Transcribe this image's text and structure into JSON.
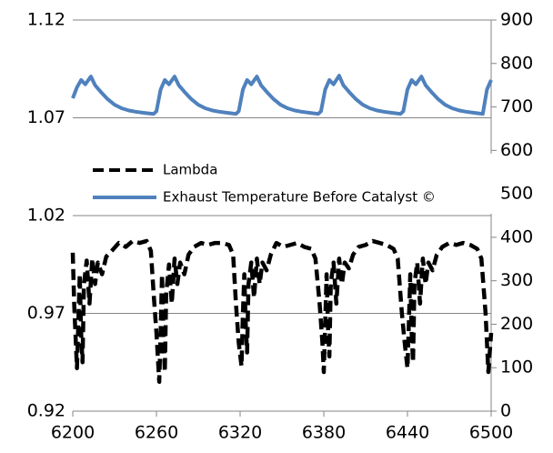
{
  "chart_data": {
    "type": "line",
    "series": [
      {
        "name": "Lambda",
        "color": "#000000",
        "dashed": true,
        "x": [
          6200,
          6201,
          6203,
          6204,
          6205,
          6206,
          6207,
          6208,
          6210,
          6212,
          6214,
          6216,
          6218,
          6221,
          6224,
          6228,
          6233,
          6238,
          6243,
          6248,
          6253,
          6256,
          6258,
          6260,
          6262,
          6263,
          6264,
          6265,
          6266,
          6267,
          6269,
          6271,
          6273,
          6275,
          6277,
          6280,
          6283,
          6287,
          6292,
          6297,
          6302,
          6307,
          6312,
          6315,
          6317,
          6319,
          6321,
          6322,
          6323,
          6324,
          6325,
          6326,
          6328,
          6330,
          6332,
          6334,
          6336,
          6339,
          6342,
          6346,
          6351,
          6356,
          6361,
          6366,
          6371,
          6374,
          6377,
          6379,
          6380,
          6381,
          6382,
          6383,
          6384,
          6385,
          6387,
          6389,
          6391,
          6393,
          6395,
          6398,
          6401,
          6405,
          6410,
          6415,
          6420,
          6425,
          6430,
          6433,
          6436,
          6438,
          6440,
          6441,
          6442,
          6443,
          6444,
          6445,
          6447,
          6449,
          6451,
          6453,
          6455,
          6458,
          6461,
          6465,
          6470,
          6475,
          6480,
          6485,
          6490,
          6493,
          6496,
          6498,
          6500
        ],
        "values": [
          1.001,
          0.975,
          0.942,
          0.965,
          0.99,
          0.96,
          0.945,
          0.985,
          0.997,
          0.975,
          0.998,
          0.985,
          0.996,
          0.99,
          0.999,
          1.002,
          1.006,
          1.004,
          1.007,
          1.006,
          1.007,
          1.002,
          0.98,
          0.96,
          0.935,
          0.96,
          0.99,
          0.96,
          0.94,
          0.98,
          0.995,
          0.975,
          0.998,
          0.985,
          0.996,
          0.99,
          1.0,
          1.004,
          1.006,
          1.005,
          1.006,
          1.006,
          1.005,
          1.0,
          0.975,
          0.955,
          0.943,
          0.97,
          0.99,
          0.965,
          0.95,
          0.985,
          0.996,
          0.978,
          0.998,
          0.985,
          0.996,
          0.992,
          1.0,
          1.006,
          1.004,
          1.005,
          1.006,
          1.004,
          1.003,
          0.998,
          0.975,
          0.955,
          0.94,
          0.965,
          0.99,
          0.963,
          0.948,
          0.985,
          0.996,
          0.975,
          0.998,
          0.985,
          0.996,
          0.993,
          1.0,
          1.004,
          1.005,
          1.007,
          1.006,
          1.005,
          1.003,
          0.998,
          0.97,
          0.955,
          0.942,
          0.965,
          0.99,
          0.96,
          0.945,
          0.985,
          0.996,
          0.975,
          0.998,
          0.985,
          0.996,
          0.992,
          1.0,
          1.004,
          1.006,
          1.005,
          1.006,
          1.005,
          1.003,
          0.998,
          0.97,
          0.94,
          0.96
        ]
      },
      {
        "name": "Exhaust Temperature Before Catalyst ©",
        "color": "#4f81bd",
        "axis": "y2",
        "x": [
          6200,
          6203,
          6206,
          6209,
          6213,
          6216,
          6220,
          6225,
          6230,
          6235,
          6240,
          6245,
          6252,
          6258,
          6260,
          6263,
          6266,
          6269,
          6273,
          6276,
          6280,
          6285,
          6290,
          6295,
          6300,
          6305,
          6312,
          6317,
          6319,
          6322,
          6325,
          6328,
          6332,
          6335,
          6339,
          6344,
          6349,
          6354,
          6359,
          6364,
          6371,
          6376,
          6378,
          6381,
          6384,
          6387,
          6391,
          6394,
          6398,
          6403,
          6408,
          6413,
          6418,
          6423,
          6430,
          6435,
          6437,
          6440,
          6443,
          6446,
          6450,
          6453,
          6457,
          6462,
          6467,
          6472,
          6477,
          6482,
          6489,
          6494,
          6497,
          6500
        ],
        "values": [
          720,
          745,
          762,
          752,
          770,
          750,
          735,
          718,
          705,
          697,
          692,
          689,
          686,
          684,
          690,
          740,
          762,
          752,
          770,
          750,
          735,
          718,
          705,
          697,
          692,
          689,
          686,
          684,
          690,
          740,
          762,
          752,
          770,
          750,
          735,
          718,
          705,
          697,
          692,
          689,
          686,
          684,
          690,
          740,
          762,
          752,
          772,
          750,
          735,
          718,
          705,
          697,
          692,
          689,
          686,
          684,
          690,
          740,
          762,
          752,
          770,
          750,
          735,
          718,
          705,
          697,
          692,
          689,
          686,
          684,
          740,
          762
        ]
      }
    ],
    "xlim": [
      6200,
      6500
    ],
    "xticks": [
      6200,
      6260,
      6320,
      6380,
      6440,
      6500
    ],
    "ylim": [
      0.92,
      1.12
    ],
    "yticks": [
      0.92,
      0.97,
      1.02,
      1.07,
      1.12
    ],
    "y2lim": [
      0,
      900
    ],
    "y2ticks": [
      0,
      100,
      200,
      300,
      400,
      500,
      600,
      700,
      800,
      900
    ],
    "grid": true,
    "legend": "center-left"
  }
}
